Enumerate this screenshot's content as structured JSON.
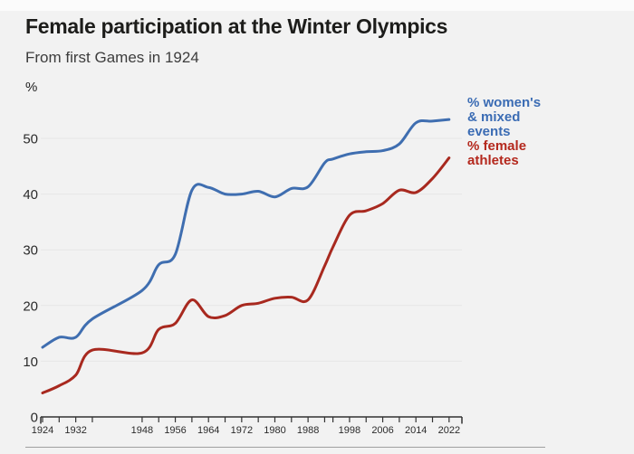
{
  "page": {
    "background": "#f2f2f2"
  },
  "header": {
    "title": "Female participation at the Winter Olympics",
    "subtitle": "From first Games in 1924"
  },
  "colors": {
    "blue_line": "#3f6eb0",
    "red_line": "#a8291f",
    "blue_label": "#3b6cb4",
    "red_label": "#b4281d",
    "axis": "#333333",
    "axis_text": "#2b2b2b",
    "grid": "#e6e6e6",
    "divider": "#a0a0a0"
  },
  "chart_data": {
    "type": "line",
    "title": "Female participation at the Winter Olympics",
    "subtitle": "From first Games in 1924",
    "unit_label": "%",
    "grid": "horizontal-only",
    "legend_position": "right-of-line-ends",
    "ylim": [
      0,
      55
    ],
    "yticks": [
      0,
      10,
      20,
      30,
      40,
      50
    ],
    "x": [
      1924,
      1928,
      1932,
      1936,
      1948,
      1952,
      1956,
      1960,
      1964,
      1968,
      1972,
      1976,
      1980,
      1984,
      1988,
      1992,
      1994,
      1998,
      2002,
      2006,
      2010,
      2014,
      2018,
      2022
    ],
    "x_labeled": [
      1924,
      1932,
      1948,
      1956,
      1964,
      1972,
      1980,
      1988,
      1998,
      2006,
      2014,
      2022
    ],
    "series": [
      {
        "name": "% women's & mixed events",
        "label_lines": "% women's\n& mixed\nevents",
        "color": "#3f6eb0",
        "label_color": "#3b6cb4",
        "values": [
          12.5,
          14.3,
          14.3,
          17.6,
          22.7,
          27.3,
          29.2,
          40.7,
          41.2,
          40.0,
          40.0,
          40.5,
          39.5,
          41.0,
          41.3,
          45.6,
          46.3,
          47.2,
          47.6,
          47.8,
          49.0,
          52.8,
          53.1,
          53.4
        ]
      },
      {
        "name": "% female athletes",
        "label_lines": "% female\nathletes",
        "color": "#a8291f",
        "label_color": "#b4281d",
        "values": [
          4.3,
          5.6,
          7.5,
          12.0,
          11.5,
          15.7,
          16.8,
          21.0,
          18.0,
          18.2,
          20.0,
          20.4,
          21.3,
          21.5,
          21.0,
          27.1,
          30.5,
          36.2,
          37.0,
          38.3,
          40.7,
          40.3,
          42.8,
          46.5
        ]
      }
    ]
  }
}
